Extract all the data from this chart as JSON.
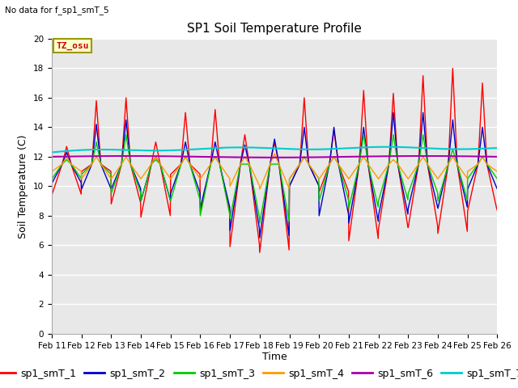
{
  "title": "SP1 Soil Temperature Profile",
  "xlabel": "Time",
  "ylabel": "Soil Temperature (C)",
  "no_data_text": "No data for f_sp1_smT_5",
  "tz_label": "TZ_osu",
  "ylim": [
    0,
    20
  ],
  "yticks": [
    0,
    2,
    4,
    6,
    8,
    10,
    12,
    14,
    16,
    18,
    20
  ],
  "x_labels": [
    "Feb 11",
    "Feb 12",
    "Feb 13",
    "Feb 14",
    "Feb 15",
    "Feb 16",
    "Feb 17",
    "Feb 18",
    "Feb 19",
    "Feb 20",
    "Feb 21",
    "Feb 22",
    "Feb 23",
    "Feb 24",
    "Feb 25",
    "Feb 26"
  ],
  "series_colors": {
    "sp1_smT_1": "#ff0000",
    "sp1_smT_2": "#0000cc",
    "sp1_smT_3": "#00cc00",
    "sp1_smT_4": "#ff9900",
    "sp1_smT_6": "#aa00aa",
    "sp1_smT_7": "#00cccc"
  },
  "background_color": "#e8e8e8",
  "fig_background": "#ffffff",
  "title_fontsize": 11,
  "axis_label_fontsize": 9,
  "tick_fontsize": 7.5,
  "legend_fontsize": 9
}
